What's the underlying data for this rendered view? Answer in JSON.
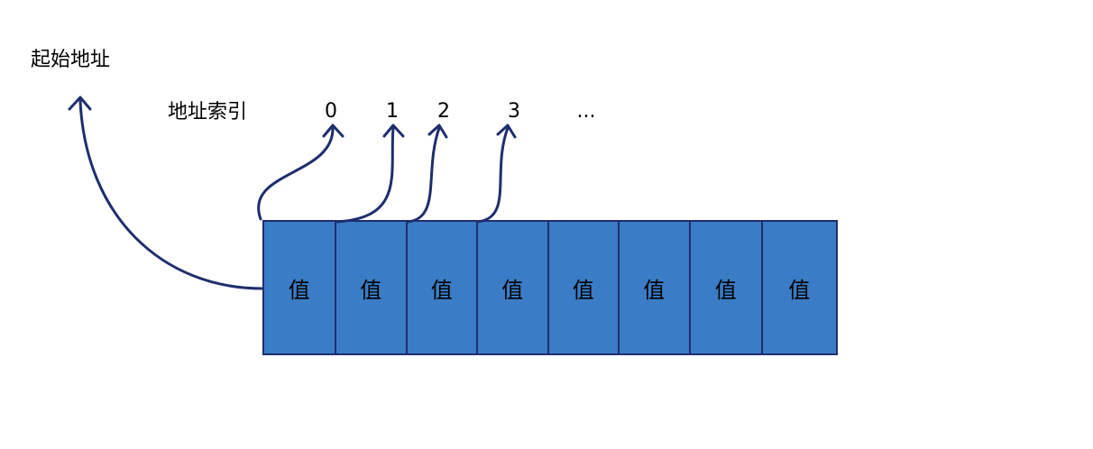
{
  "start_address_label": "起始地址",
  "address_index_label": "地址索引",
  "indices": [
    "0",
    "1",
    "2",
    "3",
    "..."
  ],
  "cells": [
    "值",
    "值",
    "值",
    "值",
    "值",
    "值",
    "值",
    "值"
  ],
  "colors": {
    "cell_fill": "#3a7cc5",
    "border": "#1e2e6e",
    "arrow": "#1e2e6e"
  }
}
